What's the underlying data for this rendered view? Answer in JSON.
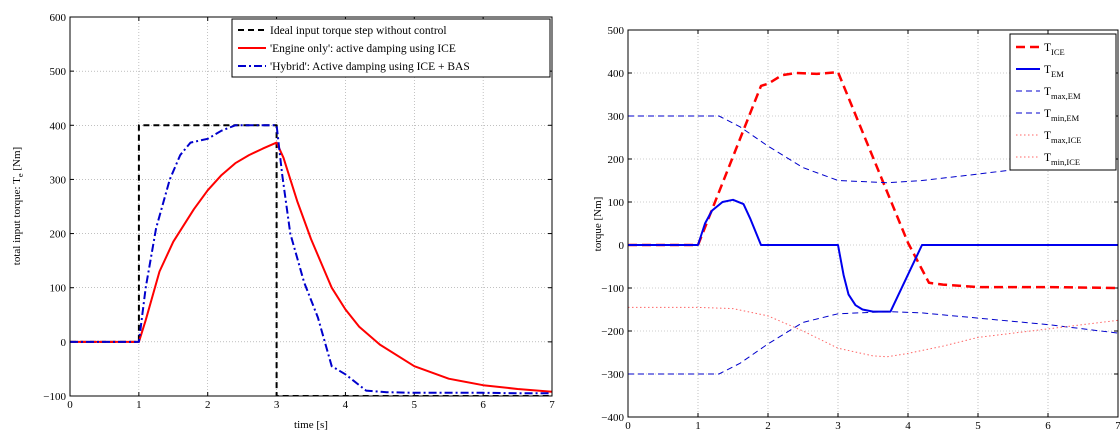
{
  "chart_data": [
    {
      "type": "line",
      "xlabel": "time [s]",
      "ylabel": "total input torque: T",
      "ylabel_sub": "e",
      "ylabel_unit": " [Nm]",
      "xlim": [
        0,
        7
      ],
      "ylim": [
        -100,
        600
      ],
      "xticks": [
        "0",
        "1",
        "2",
        "3",
        "4",
        "5",
        "6",
        "7"
      ],
      "yticks": [
        "−100",
        "0",
        "100",
        "200",
        "300",
        "400",
        "500",
        "600"
      ],
      "grid": true,
      "legend_position": "top-right",
      "series": [
        {
          "name": "Ideal input torque step without control",
          "color": "#000000",
          "style": "dashed",
          "x": [
            0,
            1,
            1,
            3,
            3,
            7
          ],
          "y": [
            0,
            0,
            400,
            400,
            -100,
            -100
          ]
        },
        {
          "name": "'Engine only': active damping using ICE",
          "color": "#ff0000",
          "style": "solid",
          "x": [
            0,
            1,
            1.1,
            1.3,
            1.5,
            1.8,
            2.0,
            2.2,
            2.4,
            2.6,
            2.8,
            3.0,
            3.1,
            3.3,
            3.5,
            3.7,
            3.8,
            4.0,
            4.2,
            4.5,
            5.0,
            5.5,
            6.0,
            6.5,
            7.0
          ],
          "y": [
            0,
            0,
            40,
            130,
            185,
            245,
            280,
            308,
            330,
            345,
            357,
            368,
            340,
            260,
            190,
            130,
            100,
            60,
            28,
            -5,
            -45,
            -68,
            -80,
            -87,
            -92
          ]
        },
        {
          "name": "'Hybrid': Active damping using ICE + BAS",
          "color": "#0000cc",
          "style": "dashdot",
          "x": [
            0,
            1,
            1.1,
            1.25,
            1.45,
            1.6,
            1.75,
            2.0,
            2.2,
            2.4,
            2.7,
            3.0,
            3.08,
            3.2,
            3.4,
            3.6,
            3.8,
            4.0,
            4.3,
            4.6,
            5.0,
            5.5,
            6.0,
            6.5,
            7.0
          ],
          "y": [
            0,
            0,
            100,
            210,
            300,
            345,
            368,
            375,
            390,
            400,
            400,
            400,
            310,
            200,
            110,
            45,
            -45,
            -60,
            -90,
            -93,
            -94,
            -94,
            -94,
            -95,
            -95
          ]
        }
      ]
    },
    {
      "type": "line",
      "xlabel": "",
      "ylabel": "torque [Nm]",
      "xlim": [
        0,
        7
      ],
      "ylim": [
        -400,
        500
      ],
      "xticks": [
        "0",
        "1",
        "2",
        "3",
        "4",
        "5",
        "6",
        "7"
      ],
      "yticks": [
        "−400",
        "−300",
        "−200",
        "−100",
        "0",
        "100",
        "200",
        "300",
        "400",
        "500"
      ],
      "grid": true,
      "legend_position": "top-right",
      "series": [
        {
          "name": "T",
          "name_sub": "ICE",
          "color": "#ff0000",
          "style": "dashed-thick",
          "x": [
            0,
            1,
            1.9,
            2.0,
            2.2,
            2.4,
            2.7,
            3.0,
            4.0,
            4.3,
            4.5,
            5.0,
            6.0,
            7.0
          ],
          "y": [
            0,
            0,
            370,
            375,
            395,
            400,
            398,
            402,
            5,
            -88,
            -92,
            -98,
            -98,
            -100
          ]
        },
        {
          "name": "T",
          "name_sub": "EM",
          "color": "#0000ee",
          "style": "solid",
          "x": [
            0,
            1,
            1.1,
            1.2,
            1.35,
            1.5,
            1.65,
            1.75,
            1.9,
            1.95,
            3.0,
            3.08,
            3.15,
            3.25,
            3.35,
            3.5,
            3.75,
            4.2,
            7.0
          ],
          "y": [
            0,
            0,
            50,
            80,
            100,
            105,
            95,
            60,
            0,
            0,
            0,
            -70,
            -115,
            -140,
            -150,
            -155,
            -155,
            0,
            0
          ]
        },
        {
          "name": "T",
          "name_sub": "max,EM",
          "color": "#0000cc",
          "style": "dashed-thin",
          "x": [
            0,
            1,
            1.3,
            1.6,
            2.0,
            2.5,
            3.0,
            3.7,
            4.2,
            5.0,
            6.0,
            7.0
          ],
          "y": [
            300,
            300,
            300,
            275,
            230,
            180,
            150,
            145,
            150,
            165,
            185,
            205
          ]
        },
        {
          "name": "T",
          "name_sub": "min,EM",
          "color": "#0000cc",
          "style": "dashed-thin",
          "x": [
            0,
            1,
            1.3,
            1.6,
            2.0,
            2.5,
            3.0,
            3.7,
            4.2,
            5.0,
            6.0,
            7.0
          ],
          "y": [
            -300,
            -300,
            -300,
            -275,
            -230,
            -180,
            -160,
            -155,
            -158,
            -170,
            -185,
            -205
          ]
        },
        {
          "name": "T",
          "name_sub": "max,ICE",
          "color": "#ff6666",
          "style": "dotted",
          "x": [],
          "y": []
        },
        {
          "name": "T",
          "name_sub": "min,ICE",
          "color": "#ff6666",
          "style": "dotted",
          "x": [
            0,
            1,
            1.5,
            2.0,
            2.5,
            3.0,
            3.5,
            3.7,
            4.0,
            4.5,
            5.0,
            6.0,
            7.0
          ],
          "y": [
            -145,
            -145,
            -148,
            -165,
            -200,
            -240,
            -258,
            -260,
            -252,
            -235,
            -215,
            -195,
            -175
          ]
        }
      ]
    }
  ]
}
